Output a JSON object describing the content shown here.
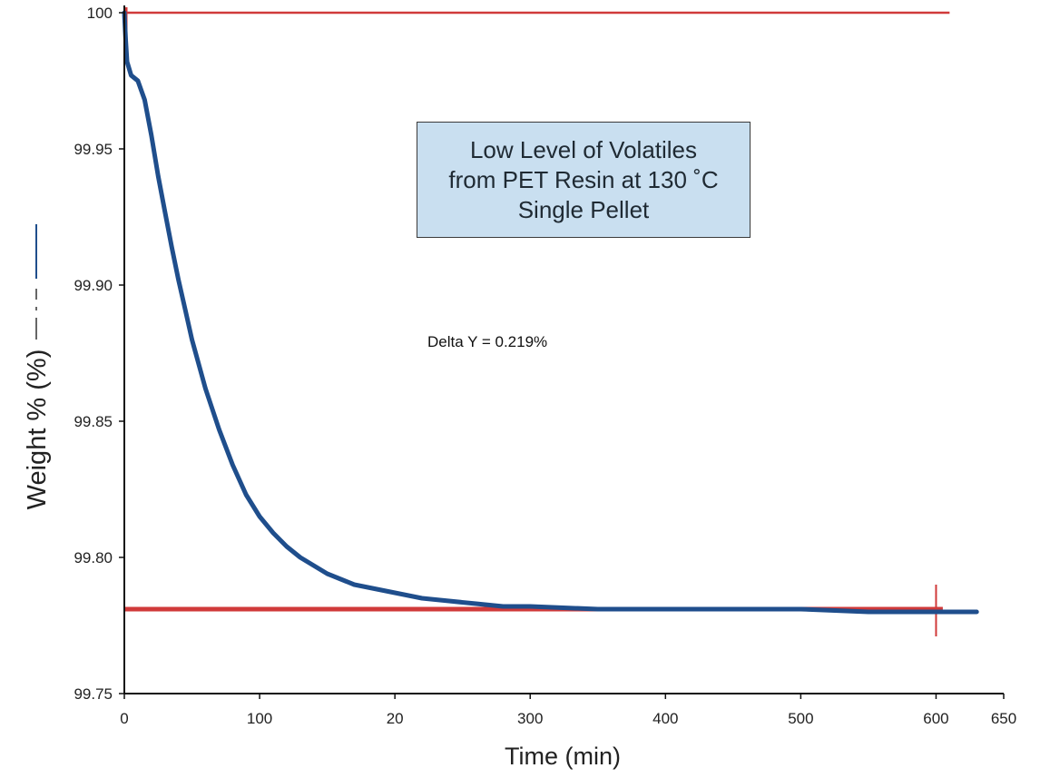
{
  "chart_data": {
    "type": "line",
    "title_lines": [
      "Low Level of Volatiles",
      "from PET Resin at 130 ˚C",
      "Single Pellet"
    ],
    "xlabel": "Time (min)",
    "ylabel": "Weight % (%)",
    "xlim": [
      0,
      650
    ],
    "ylim": [
      99.75,
      100
    ],
    "x_ticks": [
      "0",
      "100",
      "20",
      "300",
      "400",
      "500",
      "600",
      "650"
    ],
    "y_ticks": [
      "99.75",
      "99.80",
      "99.85",
      "99.90",
      "99.95",
      "100"
    ],
    "annotation": "Delta Y = 0.219%",
    "series": [
      {
        "color": "#1f4e8c",
        "x": [
          0,
          1,
          2,
          5,
          10,
          15,
          20,
          25,
          30,
          35,
          40,
          45,
          50,
          60,
          70,
          80,
          90,
          100,
          110,
          120,
          130,
          140,
          150,
          160,
          170,
          180,
          200,
          220,
          240,
          260,
          280,
          300,
          350,
          400,
          450,
          500,
          550,
          600,
          630
        ],
        "y": [
          100.0,
          99.99,
          99.982,
          99.977,
          99.975,
          99.968,
          99.955,
          99.94,
          99.927,
          99.914,
          99.902,
          99.891,
          99.88,
          99.862,
          99.847,
          99.834,
          99.823,
          99.815,
          99.809,
          99.804,
          99.8,
          99.797,
          99.794,
          99.792,
          99.79,
          99.789,
          99.787,
          99.785,
          99.784,
          99.783,
          99.782,
          99.782,
          99.781,
          99.781,
          99.781,
          99.781,
          99.78,
          99.78,
          99.78
        ]
      }
    ],
    "reference_lines": {
      "color": "#d03a3a",
      "upper_y": 100.0,
      "lower_y": 99.781,
      "markers_x": [
        0,
        600
      ]
    },
    "legend_colors": [
      "#1f4e8c",
      "#333333"
    ]
  }
}
